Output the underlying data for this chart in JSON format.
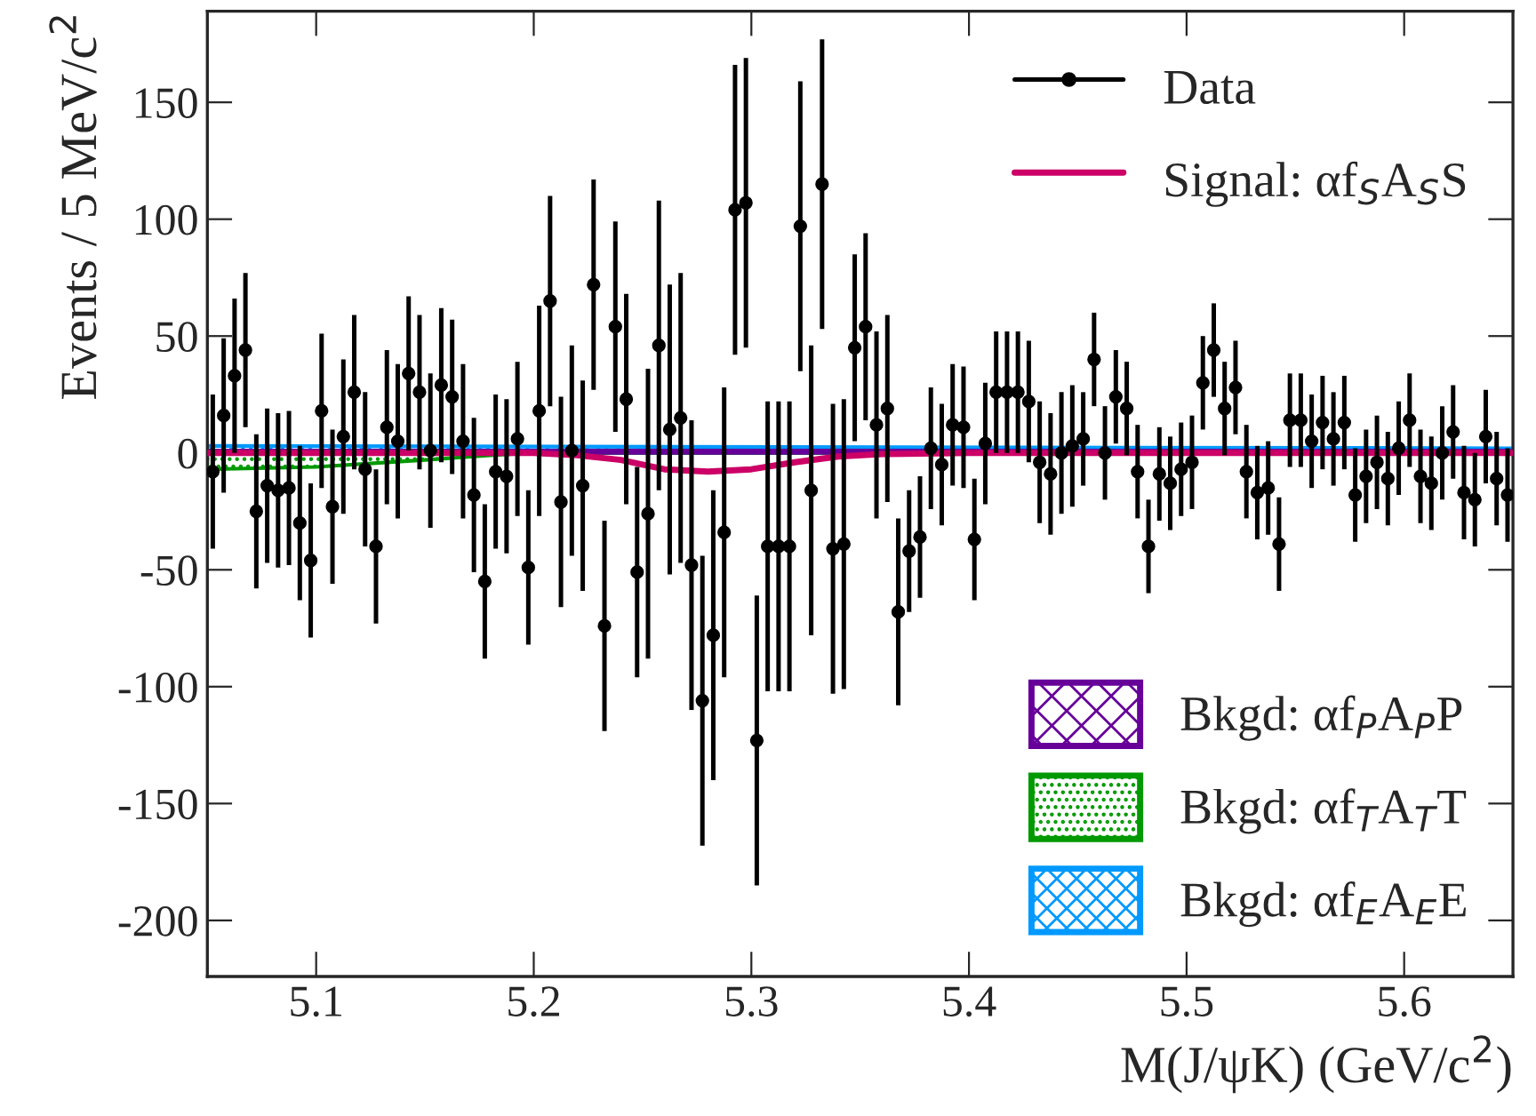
{
  "chart_data": {
    "type": "scatter",
    "xlabel": "M(J/ψK) (GeV/c$^{2}$)",
    "ylabel": "Events / 5 MeV/c$^{2}$",
    "xlim": [
      5.05,
      5.65
    ],
    "xticks": [
      5.1,
      5.2,
      5.3,
      5.4,
      5.5,
      5.6
    ],
    "ylim": [
      -224,
      189
    ],
    "yticks": [
      -200,
      -150,
      -100,
      -50,
      0,
      50,
      100,
      150
    ],
    "grid": false,
    "legend": "right",
    "series": [
      {
        "name": "Data",
        "marker": "circle",
        "color": "#000000",
        "x": [
          5.0525,
          5.0575,
          5.0625,
          5.0675,
          5.0725,
          5.0775,
          5.0825,
          5.0875,
          5.0925,
          5.0975,
          5.1025,
          5.1075,
          5.1125,
          5.1175,
          5.1225,
          5.1275,
          5.1325,
          5.1375,
          5.1425,
          5.1475,
          5.1525,
          5.1575,
          5.1625,
          5.1675,
          5.1725,
          5.1775,
          5.1825,
          5.1875,
          5.1925,
          5.1975,
          5.2025,
          5.2075,
          5.2125,
          5.2175,
          5.2225,
          5.2275,
          5.2325,
          5.2375,
          5.2425,
          5.2475,
          5.2525,
          5.2575,
          5.2625,
          5.2675,
          5.2725,
          5.2775,
          5.2825,
          5.2875,
          5.2925,
          5.2975,
          5.3025,
          5.3075,
          5.3125,
          5.3175,
          5.3225,
          5.3275,
          5.3325,
          5.3375,
          5.3425,
          5.3475,
          5.3525,
          5.3575,
          5.3625,
          5.3675,
          5.3725,
          5.3775,
          5.3825,
          5.3875,
          5.3925,
          5.3975,
          5.4025,
          5.4075,
          5.4125,
          5.4175,
          5.4225,
          5.4275,
          5.4325,
          5.4375,
          5.4425,
          5.4475,
          5.4525,
          5.4575,
          5.4625,
          5.4675,
          5.4725,
          5.4775,
          5.4825,
          5.4875,
          5.4925,
          5.4975,
          5.5025,
          5.5075,
          5.5125,
          5.5175,
          5.5225,
          5.5275,
          5.5325,
          5.5375,
          5.5425,
          5.5475,
          5.5525,
          5.5575,
          5.5625,
          5.5675,
          5.5725,
          5.5775,
          5.5825,
          5.5875,
          5.5925,
          5.5975,
          5.6025,
          5.6075,
          5.6125,
          5.6175,
          5.6225,
          5.6275,
          5.6325,
          5.6375,
          5.6425,
          5.6475
        ],
        "values": [
          -8,
          16,
          33,
          44,
          -25,
          -14,
          -16,
          -15,
          -30,
          -46,
          18,
          -23,
          7,
          26,
          -7,
          -40,
          11,
          5,
          34,
          26,
          1,
          29,
          24,
          5,
          -18,
          -55,
          -8,
          -10,
          6,
          -49,
          18,
          65,
          -21,
          1,
          -14,
          72,
          -74,
          54,
          23,
          -51,
          -26,
          46,
          10,
          15,
          -48,
          -106,
          -78,
          -34,
          104,
          107,
          -123,
          -40,
          -40,
          -40,
          97,
          -16,
          115,
          -41,
          -39,
          45,
          54,
          12,
          19,
          -68,
          -42,
          -36,
          2,
          -5,
          12,
          11,
          -37,
          4,
          26,
          26,
          26,
          22,
          -4,
          -9,
          0,
          3,
          6,
          40,
          0,
          24,
          19,
          -8,
          -40,
          -9,
          -13,
          -7,
          -4,
          30,
          44,
          19,
          28,
          -8,
          -17,
          -15,
          -39,
          14,
          14,
          5,
          13,
          6,
          13,
          -18,
          -10,
          -4,
          -11,
          2,
          14,
          -10,
          -13,
          0,
          9,
          -17,
          -20,
          7,
          -11,
          -18
        ],
        "errors": [
          33,
          33,
          33,
          33,
          33,
          33,
          33,
          33,
          33,
          33,
          33,
          33,
          33,
          33,
          33,
          33,
          33,
          33,
          33,
          33,
          33,
          33,
          33,
          33,
          33,
          33,
          33,
          33,
          33,
          33,
          45,
          45,
          45,
          45,
          45,
          45,
          45,
          45,
          45,
          45,
          62,
          62,
          62,
          62,
          62,
          62,
          62,
          62,
          62,
          62,
          62,
          62,
          62,
          62,
          62,
          62,
          62,
          62,
          62,
          40,
          40,
          40,
          40,
          40,
          26,
          26,
          26,
          26,
          26,
          26,
          26,
          26,
          26,
          26,
          26,
          26,
          26,
          26,
          26,
          26,
          20,
          20,
          20,
          20,
          20,
          20,
          20,
          20,
          20,
          20,
          20,
          20,
          20,
          20,
          20,
          20,
          20,
          20,
          20,
          20,
          20,
          20,
          20,
          20,
          20,
          20,
          20,
          20,
          20,
          20,
          20,
          20,
          20,
          20,
          20,
          20,
          20,
          20,
          20,
          20
        ]
      },
      {
        "name": "Signal: αf$_{S}$A$_{S}$S",
        "type": "line",
        "color": "#cc0066",
        "x": [
          5.05,
          5.2,
          5.22,
          5.24,
          5.26,
          5.28,
          5.3,
          5.32,
          5.34,
          5.36,
          5.4,
          5.65
        ],
        "values": [
          0,
          0,
          -1,
          -3,
          -7,
          -8,
          -7,
          -4,
          -1.5,
          -0.5,
          0,
          0
        ]
      },
      {
        "name": "Bkgd: αf$_{P}$A$_{P}$P",
        "type": "area",
        "color": "#660099",
        "x": [
          5.05,
          5.65
        ],
        "values": [
          1,
          1
        ]
      },
      {
        "name": "Bkgd: αf$_{T}$A$_{T}$T",
        "type": "area",
        "color": "#009900",
        "x": [
          5.05,
          5.1,
          5.15,
          5.18,
          5.2,
          5.65
        ],
        "values": [
          -7,
          -6,
          -3,
          -1,
          0,
          0
        ]
      },
      {
        "name": "Bkgd: αf$_{E}$A$_{E}$E",
        "type": "area",
        "color": "#0099ff",
        "x": [
          5.05,
          5.65
        ],
        "values": [
          3,
          2
        ]
      }
    ]
  }
}
